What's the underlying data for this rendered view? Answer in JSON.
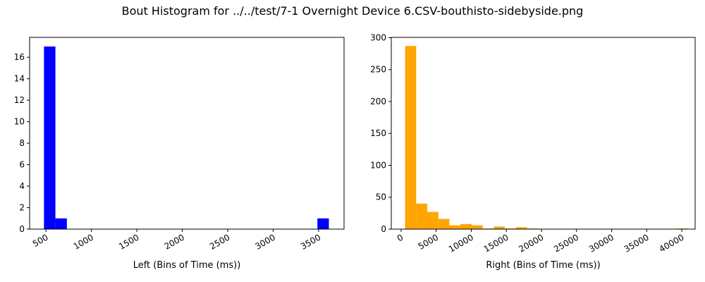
{
  "suptitle": "Bout Histogram for ../../test/7-1 Overnight Device 6.CSV-bouthisto-sidebyside.png",
  "chart_data": [
    {
      "type": "bar",
      "subtype": "histogram",
      "color": "#0000ff",
      "xlabel": "Left (Bins of Time (ms))",
      "ylabel": "",
      "xlim": [
        320,
        3780
      ],
      "ylim": [
        0,
        17.85
      ],
      "xticks": [
        500,
        1000,
        1500,
        2000,
        2500,
        3000,
        3500
      ],
      "xtick_labels": [
        "500",
        "1000",
        "1500",
        "2000",
        "2500",
        "3000",
        "3500"
      ],
      "yticks": [
        0,
        2,
        4,
        6,
        8,
        10,
        12,
        14,
        16
      ],
      "ytick_labels": [
        "0",
        "2",
        "4",
        "6",
        "8",
        "10",
        "12",
        "14",
        "16"
      ],
      "bins": [
        {
          "x0": 478,
          "x1": 604,
          "count": 17
        },
        {
          "x0": 604,
          "x1": 730,
          "count": 1
        },
        {
          "x0": 3487,
          "x1": 3613,
          "count": 1
        }
      ]
    },
    {
      "type": "bar",
      "subtype": "histogram",
      "color": "#ffa500",
      "xlabel": "Right (Bins of Time (ms))",
      "ylabel": "",
      "xlim": [
        -1400,
        41900
      ],
      "ylim": [
        0,
        300.5
      ],
      "xticks": [
        0,
        5000,
        10000,
        15000,
        20000,
        25000,
        30000,
        35000,
        40000
      ],
      "xtick_labels": [
        "0",
        "5000",
        "10000",
        "15000",
        "20000",
        "25000",
        "30000",
        "35000",
        "40000"
      ],
      "yticks": [
        0,
        50,
        100,
        150,
        200,
        250,
        300
      ],
      "ytick_labels": [
        "0",
        "50",
        "100",
        "150",
        "200",
        "250",
        "300"
      ],
      "bins": [
        {
          "x0": 570,
          "x1": 2150,
          "count": 287
        },
        {
          "x0": 2150,
          "x1": 3730,
          "count": 40
        },
        {
          "x0": 3730,
          "x1": 5310,
          "count": 27
        },
        {
          "x0": 5310,
          "x1": 6890,
          "count": 16
        },
        {
          "x0": 6890,
          "x1": 8470,
          "count": 6
        },
        {
          "x0": 8470,
          "x1": 10050,
          "count": 8
        },
        {
          "x0": 10050,
          "x1": 11630,
          "count": 6
        },
        {
          "x0": 11630,
          "x1": 13210,
          "count": 1
        },
        {
          "x0": 13210,
          "x1": 14790,
          "count": 4
        },
        {
          "x0": 14790,
          "x1": 16370,
          "count": 1
        },
        {
          "x0": 16370,
          "x1": 17950,
          "count": 3
        },
        {
          "x0": 17950,
          "x1": 19530,
          "count": 1
        },
        {
          "x0": 39280,
          "x1": 40860,
          "count": 1
        }
      ]
    }
  ]
}
